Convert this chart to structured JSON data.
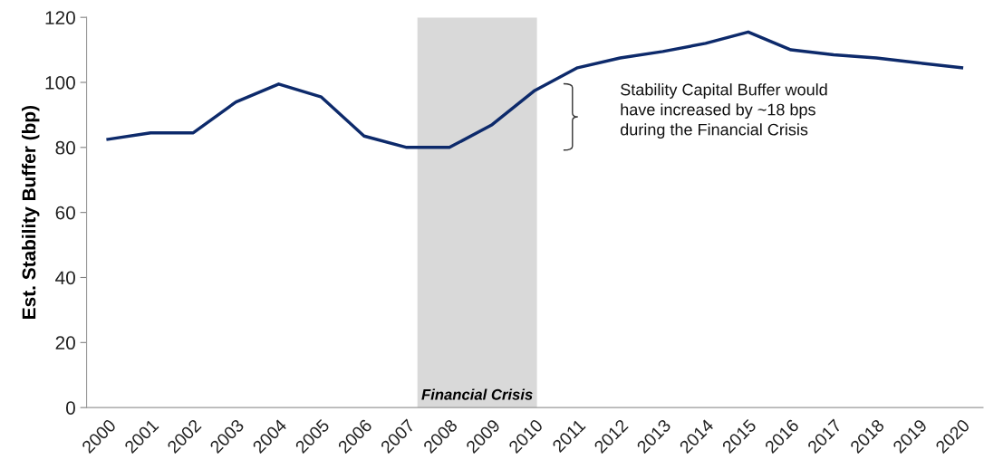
{
  "chart_data": {
    "type": "line",
    "ylabel": "Est. Stability Buffer (bp)",
    "x": [
      2000,
      2001,
      2002,
      2003,
      2004,
      2005,
      2006,
      2007,
      2008,
      2009,
      2010,
      2011,
      2012,
      2013,
      2014,
      2015,
      2016,
      2017,
      2018,
      2019,
      2020
    ],
    "series": [
      {
        "color": "#0d2a6b",
        "values": [
          82.5,
          84.5,
          84.5,
          94,
          99.5,
          95.5,
          83.5,
          80,
          80,
          87,
          97.5,
          104.5,
          107.5,
          109.5,
          112,
          115.5,
          110,
          108.5,
          107.5,
          106,
          104.5
        ]
      }
    ],
    "xlim": [
      1999.5,
      2020.5
    ],
    "xticks": [
      2000,
      2001,
      2002,
      2003,
      2004,
      2005,
      2006,
      2007,
      2008,
      2009,
      2010,
      2011,
      2012,
      2013,
      2014,
      2015,
      2016,
      2017,
      2018,
      2019,
      2020
    ],
    "ylim": [
      0,
      120
    ],
    "yticks": [
      0,
      20,
      40,
      60,
      80,
      100,
      120
    ],
    "bands": [
      {
        "axis": "x",
        "from": 2007.25,
        "to": 2010.05,
        "label": "Financial Crisis",
        "color": "#d9d9d9"
      }
    ],
    "annotations": [
      "Stability Capital Buffer would\nhave increased by ~18 bps\nduring the Financial Crisis"
    ],
    "grid": false,
    "legend": false,
    "marker": "none",
    "line_style": "solid"
  }
}
